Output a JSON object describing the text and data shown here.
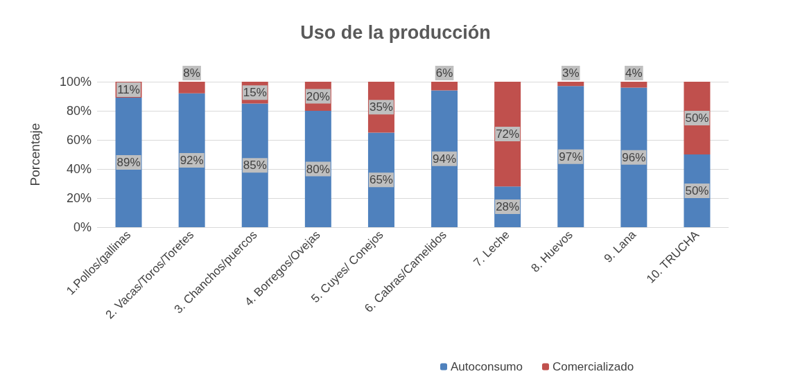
{
  "chart_data": {
    "type": "bar",
    "title": "Uso de la producción",
    "ylabel": "Porcentaje",
    "stacked": true,
    "grid": "y",
    "legend": "bottom",
    "categories": [
      "1.Pollos/gallinas",
      "2. Vacas/Toros/Toretes",
      "3. Chanchos/puercos",
      "4. Borregos/Ovejas",
      "5. Cuyes/ Conejos",
      "6. Cabras/Camelidos",
      "7. Leche",
      "8. Huevos",
      "9. Lana",
      "10. TRUCHA"
    ],
    "ylim": [
      0,
      100
    ],
    "yticks": [
      {
        "value": 0,
        "label": "0%"
      },
      {
        "value": 20,
        "label": "20%"
      },
      {
        "value": 40,
        "label": "40%"
      },
      {
        "value": 60,
        "label": "60%"
      },
      {
        "value": 80,
        "label": "80%"
      },
      {
        "value": 100,
        "label": "100%"
      }
    ],
    "series": [
      {
        "name": "Autoconsumo",
        "color": "#4f81bd",
        "values": [
          89,
          92,
          85,
          80,
          65,
          94,
          28,
          97,
          96,
          50
        ],
        "value_labels": [
          "89%",
          "92%",
          "85%",
          "80%",
          "65%",
          "94%",
          "28%",
          "97%",
          "96%",
          "50%"
        ]
      },
      {
        "name": "Comercializado",
        "color": "#c0504d",
        "values": [
          11,
          8,
          15,
          20,
          35,
          6,
          72,
          3,
          4,
          50
        ],
        "value_labels": [
          "11%",
          "8%",
          "15%",
          "20%",
          "35%",
          "6%",
          "72%",
          "3%",
          "4%",
          "50%"
        ]
      }
    ]
  }
}
